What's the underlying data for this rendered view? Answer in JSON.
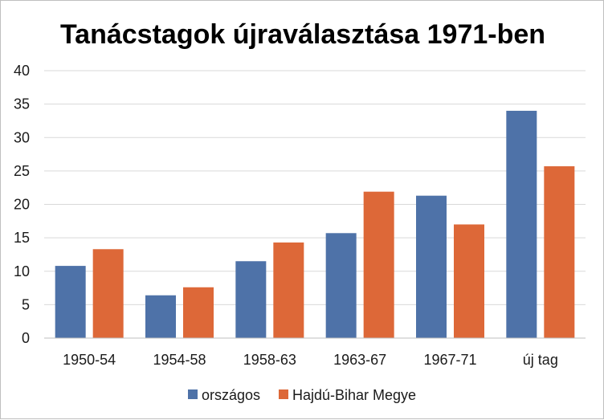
{
  "chart_data": {
    "type": "bar",
    "title": "Tanácstagok újraválasztása 1971-ben",
    "xlabel": "",
    "ylabel": "",
    "categories": [
      "1950-54",
      "1954-58",
      "1958-63",
      "1963-67",
      "1967-71",
      "új tag"
    ],
    "series": [
      {
        "name": "országos",
        "color": "#4e72a8",
        "values": [
          10.8,
          6.4,
          11.5,
          15.7,
          21.3,
          34.0
        ]
      },
      {
        "name": "Hajdú-Bihar Megye",
        "color": "#dd6838",
        "values": [
          13.3,
          7.6,
          14.3,
          21.9,
          17.0,
          25.7
        ]
      }
    ],
    "ylim": [
      0,
      40
    ],
    "yticks": [
      "0",
      "5",
      "10",
      "15",
      "20",
      "25",
      "30",
      "35",
      "40"
    ],
    "grid": true,
    "legend": "bottom"
  }
}
